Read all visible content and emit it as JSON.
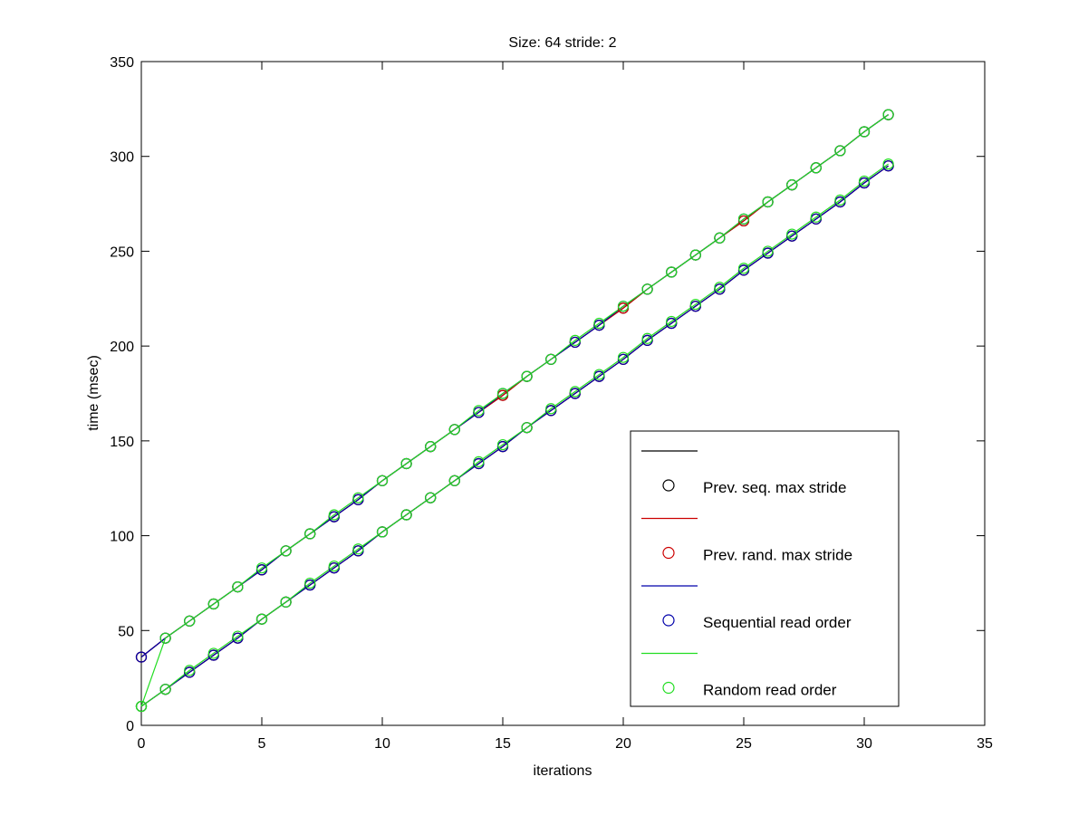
{
  "chart_data": {
    "type": "line",
    "title": "Size: 64 stride: 2",
    "xlabel": "iterations",
    "ylabel": "time (msec)",
    "xlim": [
      0,
      35
    ],
    "ylim": [
      0,
      350
    ],
    "xticks": [
      0,
      5,
      10,
      15,
      20,
      25,
      30,
      35
    ],
    "yticks": [
      0,
      50,
      100,
      150,
      200,
      250,
      300,
      350
    ],
    "grid": false,
    "legend_position": "bottom-right",
    "x": [
      0,
      1,
      2,
      3,
      4,
      5,
      6,
      7,
      8,
      9,
      10,
      11,
      12,
      13,
      14,
      15,
      16,
      17,
      18,
      19,
      20,
      21,
      22,
      23,
      24,
      25,
      26,
      27,
      28,
      29,
      30,
      31
    ],
    "series": [
      {
        "name": "Prev. seq. max stride",
        "color": "#000000",
        "groups": [
          [
            36,
            46,
            55,
            64,
            73,
            82,
            92,
            101,
            110,
            119,
            129,
            138,
            147,
            156,
            165,
            174,
            184,
            193,
            202,
            211,
            220,
            230,
            239,
            248,
            257,
            266,
            276,
            285,
            294,
            303,
            313,
            322
          ],
          [
            10,
            19,
            28,
            37,
            46,
            56,
            65,
            74,
            83,
            92,
            102,
            111,
            120,
            129,
            138,
            147,
            157,
            166,
            175,
            184,
            193,
            203,
            212,
            221,
            230,
            240,
            249,
            258,
            267,
            276,
            286,
            295
          ]
        ]
      },
      {
        "name": "Prev. rand. max stride",
        "color": "#cc0000",
        "groups": [
          [
            36,
            46,
            55,
            64,
            73,
            82,
            92,
            101,
            110,
            119,
            129,
            138,
            147,
            156,
            165,
            174,
            184,
            193,
            202,
            211,
            220,
            230,
            239,
            248,
            257,
            266,
            276,
            285,
            294,
            303,
            313,
            322
          ],
          [
            10,
            19,
            28,
            37,
            46,
            56,
            65,
            74,
            83,
            92,
            102,
            111,
            120,
            129,
            138,
            147,
            157,
            166,
            175,
            184,
            193,
            203,
            212,
            221,
            230,
            240,
            249,
            258,
            267,
            276,
            286,
            295
          ]
        ]
      },
      {
        "name": "Sequential read order",
        "color": "#0000aa",
        "groups": [
          [
            36,
            46,
            55,
            64,
            73,
            82,
            92,
            101,
            110,
            119,
            129,
            138,
            147,
            156,
            165,
            175,
            184,
            193,
            202,
            211,
            221,
            230,
            239,
            248,
            257,
            267,
            276,
            285,
            294,
            303,
            313,
            322
          ],
          [
            10,
            19,
            28,
            37,
            46,
            56,
            65,
            74,
            83,
            92,
            102,
            111,
            120,
            129,
            138,
            147,
            157,
            166,
            175,
            184,
            193,
            203,
            212,
            221,
            230,
            240,
            249,
            258,
            267,
            276,
            286,
            295
          ]
        ]
      },
      {
        "name": "Random read order",
        "color": "#22dd22",
        "groups": [
          [
            10,
            46,
            55,
            64,
            73,
            83,
            92,
            101,
            111,
            120,
            129,
            138,
            147,
            156,
            166,
            175,
            184,
            193,
            203,
            212,
            221,
            230,
            239,
            248,
            257,
            267,
            276,
            285,
            294,
            303,
            313,
            322
          ],
          [
            10,
            19,
            29,
            38,
            47,
            56,
            65,
            75,
            84,
            93,
            102,
            111,
            120,
            129,
            139,
            148,
            157,
            167,
            176,
            185,
            194,
            204,
            213,
            222,
            231,
            241,
            250,
            259,
            268,
            277,
            287,
            296
          ]
        ]
      }
    ]
  }
}
